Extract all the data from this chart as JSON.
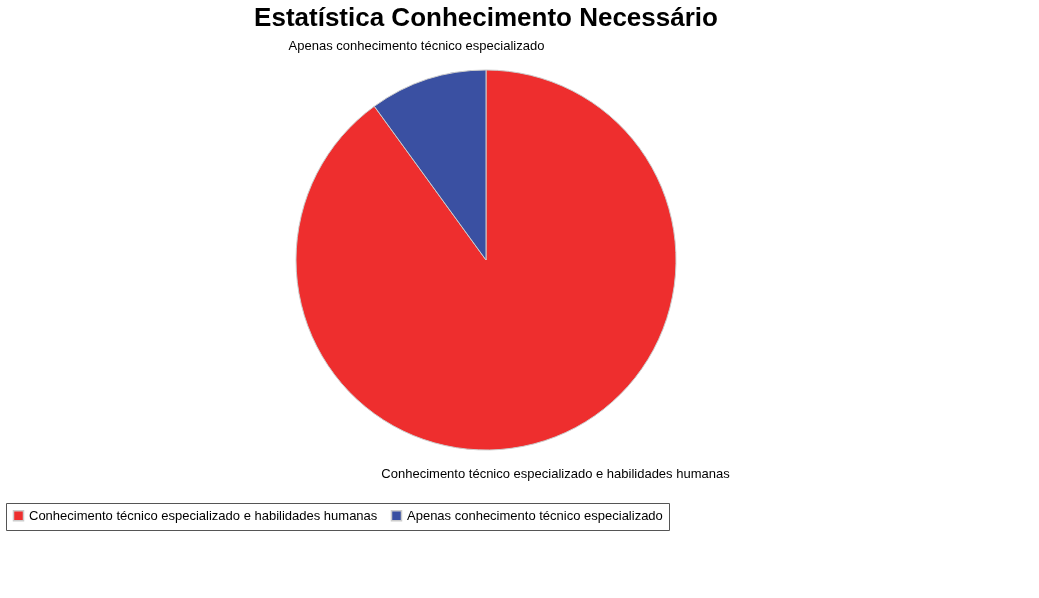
{
  "chart_data": {
    "type": "pie",
    "title": "Estatística Conhecimento Necessário",
    "categories": [
      "Conhecimento técnico especializado e habilidades humanas",
      "Apenas conhecimento técnico especializado"
    ],
    "values": [
      90,
      10
    ],
    "colors": [
      "#ee2e2e",
      "#3a50a2"
    ],
    "legend": "bottom"
  }
}
